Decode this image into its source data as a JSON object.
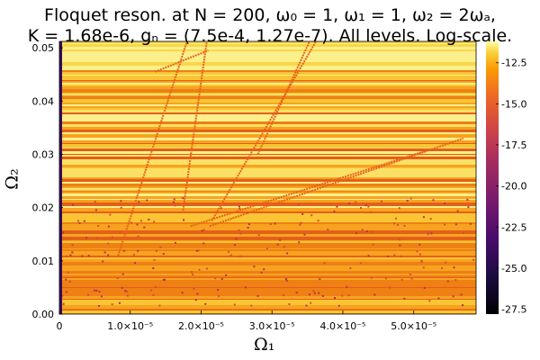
{
  "chart_data": {
    "type": "heatmap",
    "title_line_1": "Floquet reson. at N = 200, ω₀ = 1, ω₁ = 1, ω₂ = 2ωₐ,",
    "title_line_2": "K = 1.68e-6, gₙ = (7.5e-4, 1.27e-7). All levels. Log-scale.",
    "xlabel": "Ω₁",
    "ylabel": "Ω₂",
    "x_ticks": [
      "0",
      "1.0×10⁻⁵",
      "2.0×10⁻⁵",
      "3.0×10⁻⁵",
      "4.0×10⁻⁵",
      "5.0×10⁻⁵"
    ],
    "x_tick_values": [
      0,
      1e-05,
      2e-05,
      3e-05,
      4e-05,
      5e-05
    ],
    "y_ticks": [
      "0.00",
      "0.01",
      "0.02",
      "0.03",
      "0.04",
      "0.05"
    ],
    "y_tick_values": [
      0,
      0.01,
      0.02,
      0.03,
      0.04,
      0.05
    ],
    "xlim": [
      0,
      5.88e-05
    ],
    "ylim": [
      0,
      0.0512
    ],
    "colorbar": {
      "colormap": "inferno",
      "range": [
        -27.8,
        -11.2
      ],
      "ticks": [
        "-12.5",
        "-15.0",
        "-17.5",
        "-20.0",
        "-22.5",
        "-25.0",
        "-27.5"
      ],
      "tick_values": [
        -12.5,
        -15.0,
        -17.5,
        -20.0,
        -22.5,
        -25.0,
        -27.5
      ]
    },
    "resonance_lines": [
      {
        "x": [
          8.3e-06,
          1.8e-05
        ],
        "y": [
          0.011,
          0.0512
        ]
      },
      {
        "x": [
          1.74e-05,
          2.08e-05
        ],
        "y": [
          0.019,
          0.0512
        ]
      },
      {
        "x": [
          2.15e-05,
          3.62e-05
        ],
        "y": [
          0.0175,
          0.0512
        ]
      },
      {
        "x": [
          2.8e-05,
          3.53e-05
        ],
        "y": [
          0.03,
          0.0512
        ]
      },
      {
        "x": [
          2.12e-05,
          5.7e-05
        ],
        "y": [
          0.0165,
          0.033
        ]
      },
      {
        "x": [
          1.85e-05,
          5.25e-05
        ],
        "y": [
          0.0165,
          0.031
        ]
      },
      {
        "x": [
          1.35e-05,
          2.1e-05
        ],
        "y": [
          0.0455,
          0.0495
        ]
      }
    ],
    "grid": false
  }
}
